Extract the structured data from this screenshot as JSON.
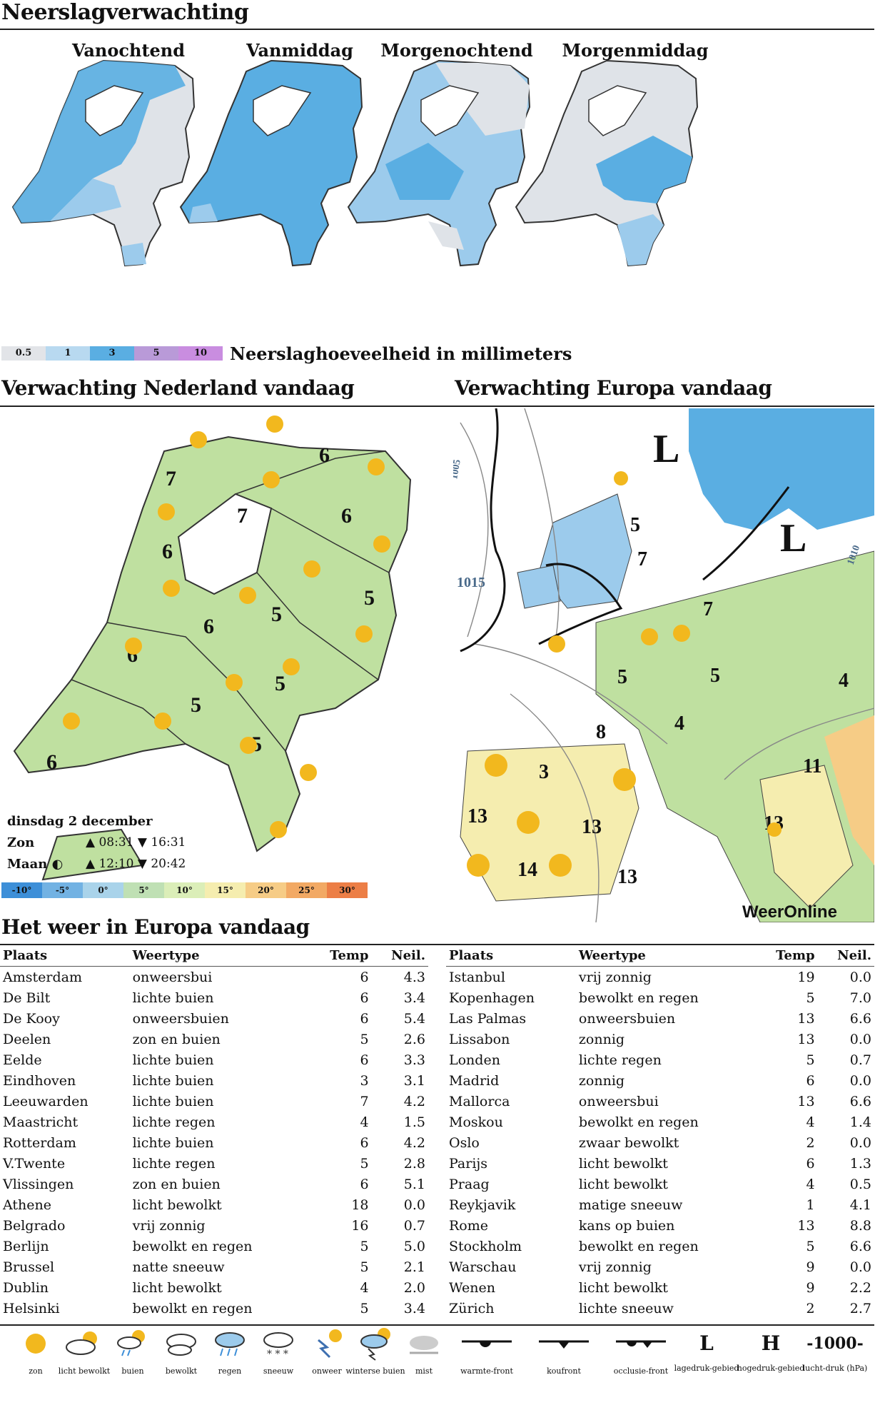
{
  "precip": {
    "title": "Neerslagverwachting",
    "panels": [
      "Vanochtend",
      "Vanmiddag",
      "Morgenochtend",
      "Morgenmiddag"
    ],
    "legend_values": [
      "0.5",
      "1",
      "3",
      "5",
      "10"
    ],
    "legend_colors": [
      "#cfe6f5",
      "#9ccbec",
      "#5aaee2",
      "#b99ad8",
      "#c98de0"
    ],
    "legend_text": "Neerslaghoeveelheid in millimeters"
  },
  "nl": {
    "title": "Verwachting Nederland vandaag",
    "temps": [
      "7",
      "6",
      "6",
      "7",
      "6",
      "5",
      "6",
      "5",
      "6",
      "5",
      "5",
      "6",
      "5"
    ],
    "date": "dinsdag 2 december",
    "sun_label": "Zon",
    "sun_times": "▲ 08:31 ▼ 16:31",
    "moon_label": "Maan ◐",
    "moon_times": "▲ 12:10 ▼ 20:42",
    "temp_scale": [
      "-10°",
      "-5°",
      "0°",
      "5°",
      "10°",
      "15°",
      "20°",
      "25°",
      "30°"
    ],
    "temp_colors": [
      "#3d8fd8",
      "#72b2e3",
      "#a9d3ea",
      "#bfe0b4",
      "#dbeeb8",
      "#f5edaf",
      "#f6cc86",
      "#f2a964",
      "#ec7e46"
    ]
  },
  "eu": {
    "title": "Verwachting Europa vandaag",
    "pressure": "1015",
    "isobar_1": "1005",
    "isobar_2": "1010",
    "lows": [
      "L",
      "L"
    ],
    "temps": [
      "5",
      "7",
      "7",
      "5",
      "5",
      "4",
      "4",
      "8",
      "3",
      "11",
      "13",
      "13",
      "14",
      "13",
      "13"
    ],
    "brand": "WeerOnline"
  },
  "table": {
    "title": "Het weer in Europa vandaag",
    "headers": [
      "Plaats",
      "Weertype",
      "Temp",
      "Neil."
    ],
    "left": [
      [
        "Amsterdam",
        "onweersbui",
        "6",
        "4.3"
      ],
      [
        "De Bilt",
        "lichte buien",
        "6",
        "3.4"
      ],
      [
        "De Kooy",
        "onweersbuien",
        "6",
        "5.4"
      ],
      [
        "Deelen",
        "zon en buien",
        "5",
        "2.6"
      ],
      [
        "Eelde",
        "lichte buien",
        "6",
        "3.3"
      ],
      [
        "Eindhoven",
        "lichte buien",
        "3",
        "3.1"
      ],
      [
        "Leeuwarden",
        "lichte buien",
        "7",
        "4.2"
      ],
      [
        "Maastricht",
        "lichte regen",
        "4",
        "1.5"
      ],
      [
        "Rotterdam",
        "lichte buien",
        "6",
        "4.2"
      ],
      [
        "V.Twente",
        "lichte regen",
        "5",
        "2.8"
      ],
      [
        "Vlissingen",
        "zon en buien",
        "6",
        "5.1"
      ],
      [
        "Athene",
        "licht bewolkt",
        "18",
        "0.0"
      ],
      [
        "Belgrado",
        "vrij zonnig",
        "16",
        "0.7"
      ],
      [
        "Berlijn",
        "bewolkt en regen",
        "5",
        "5.0"
      ],
      [
        "Brussel",
        "natte sneeuw",
        "5",
        "2.1"
      ],
      [
        "Dublin",
        "licht bewolkt",
        "4",
        "2.0"
      ],
      [
        "Helsinki",
        "bewolkt en regen",
        "5",
        "3.4"
      ]
    ],
    "right": [
      [
        "Istanbul",
        "vrij zonnig",
        "19",
        "0.0"
      ],
      [
        "Kopenhagen",
        "bewolkt en regen",
        "5",
        "7.0"
      ],
      [
        "Las Palmas",
        "onweersbuien",
        "13",
        "6.6"
      ],
      [
        "Lissabon",
        "zonnig",
        "13",
        "0.0"
      ],
      [
        "Londen",
        "lichte regen",
        "5",
        "0.7"
      ],
      [
        "Madrid",
        "zonnig",
        "6",
        "0.0"
      ],
      [
        "Mallorca",
        "onweersbui",
        "13",
        "6.6"
      ],
      [
        "Moskou",
        "bewolkt en regen",
        "4",
        "1.4"
      ],
      [
        "Oslo",
        "zwaar bewolkt",
        "2",
        "0.0"
      ],
      [
        "Parijs",
        "licht bewolkt",
        "6",
        "1.3"
      ],
      [
        "Praag",
        "licht bewolkt",
        "4",
        "0.5"
      ],
      [
        "Reykjavik",
        "matige sneeuw",
        "1",
        "4.1"
      ],
      [
        "Rome",
        "kans op buien",
        "13",
        "8.8"
      ],
      [
        "Stockholm",
        "bewolkt en regen",
        "5",
        "6.6"
      ],
      [
        "Warschau",
        "vrij zonnig",
        "9",
        "0.0"
      ],
      [
        "Wenen",
        "licht bewolkt",
        "9",
        "2.2"
      ],
      [
        "Zürich",
        "lichte sneeuw",
        "2",
        "2.7"
      ]
    ]
  },
  "legend": [
    {
      "icon": "sun-icon",
      "label": "zon"
    },
    {
      "icon": "partly-cloudy-icon",
      "label": "licht bewolkt"
    },
    {
      "icon": "showers-icon",
      "label": "buien"
    },
    {
      "icon": "cloudy-icon",
      "label": "bewolkt"
    },
    {
      "icon": "rain-icon",
      "label": "regen"
    },
    {
      "icon": "snow-icon",
      "label": "sneeuw"
    },
    {
      "icon": "thunder-icon",
      "label": "onweer"
    },
    {
      "icon": "thunder-showers-icon",
      "label": "winterse buien"
    },
    {
      "icon": "fog-icon",
      "label": "mist"
    },
    {
      "icon": "warm-front-icon",
      "label": "warmte-front"
    },
    {
      "icon": "cold-front-icon",
      "label": "koufront"
    },
    {
      "icon": "occluded-front-icon",
      "label": "occlusie-front"
    },
    {
      "icon": "low-icon",
      "label": "lagedruk-gebied",
      "symbol": "L"
    },
    {
      "icon": "high-icon",
      "label": "hogedruk-gebied",
      "symbol": "H"
    },
    {
      "icon": "isobar-icon",
      "label": "lucht-druk (hPa)",
      "symbol": "-1000-"
    }
  ]
}
